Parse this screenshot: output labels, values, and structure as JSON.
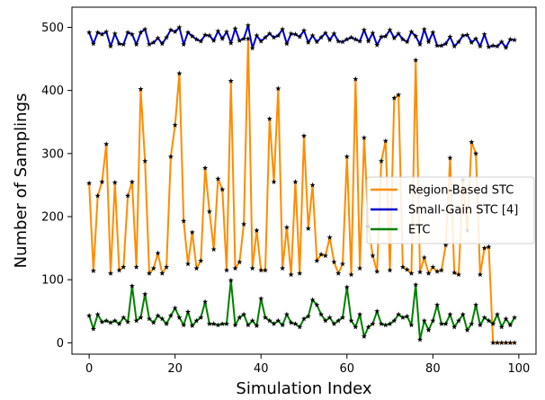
{
  "chart_data": {
    "type": "line",
    "xlabel": "Simulation Index",
    "ylabel": "Number of Samplings",
    "xlim": [
      -4,
      104
    ],
    "ylim": [
      -18,
      532
    ],
    "xticks": [
      0,
      20,
      40,
      60,
      80,
      100
    ],
    "yticks": [
      0,
      100,
      200,
      300,
      400,
      500
    ],
    "grid": false,
    "legend_placement": "center-right",
    "marker": "star",
    "series": [
      {
        "name": "Region-Based STC",
        "color": "#ff8c00",
        "x": [
          0,
          1,
          2,
          3,
          4,
          5,
          6,
          7,
          8,
          9,
          10,
          11,
          12,
          13,
          14,
          15,
          16,
          17,
          18,
          19,
          20,
          21,
          22,
          23,
          24,
          25,
          26,
          27,
          28,
          29,
          30,
          31,
          32,
          33,
          34,
          35,
          36,
          37,
          38,
          39,
          40,
          41,
          42,
          43,
          44,
          45,
          46,
          47,
          48,
          49,
          50,
          51,
          52,
          53,
          54,
          55,
          56,
          57,
          58,
          59,
          60,
          61,
          62,
          63,
          64,
          65,
          66,
          67,
          68,
          69,
          70,
          71,
          72,
          73,
          74,
          75,
          76,
          77,
          78,
          79,
          80,
          81,
          82,
          83,
          84,
          85,
          86,
          87,
          88,
          89,
          90,
          91,
          92,
          93,
          94,
          95,
          96,
          97,
          98,
          99
        ],
        "values": [
          253,
          114,
          233,
          255,
          315,
          110,
          254,
          115,
          120,
          233,
          255,
          120,
          402,
          288,
          110,
          118,
          142,
          110,
          120,
          295,
          345,
          427,
          193,
          125,
          175,
          118,
          130,
          277,
          208,
          148,
          260,
          243,
          115,
          415,
          118,
          128,
          188,
          482,
          118,
          178,
          115,
          115,
          355,
          255,
          403,
          118,
          183,
          108,
          255,
          110,
          328,
          181,
          250,
          130,
          140,
          138,
          167,
          128,
          110,
          125,
          295,
          108,
          418,
          118,
          325,
          184,
          138,
          113,
          288,
          320,
          115,
          388,
          393,
          120,
          116,
          110,
          448,
          112,
          135,
          110,
          120,
          113,
          115,
          155,
          293,
          111,
          108,
          258,
          178,
          318,
          300,
          108,
          150,
          152,
          0,
          0,
          0,
          0,
          0,
          0
        ],
        "values_note": ""
      },
      {
        "name": "Small-Gain STC [4]",
        "color": "#0000cc",
        "x": [
          0,
          1,
          2,
          3,
          4,
          5,
          6,
          7,
          8,
          9,
          10,
          11,
          12,
          13,
          14,
          15,
          16,
          17,
          18,
          19,
          20,
          21,
          22,
          23,
          24,
          25,
          26,
          27,
          28,
          29,
          30,
          31,
          32,
          33,
          34,
          35,
          36,
          37,
          38,
          39,
          40,
          41,
          42,
          43,
          44,
          45,
          46,
          47,
          48,
          49,
          50,
          51,
          52,
          53,
          54,
          55,
          56,
          57,
          58,
          59,
          60,
          61,
          62,
          63,
          64,
          65,
          66,
          67,
          68,
          69,
          70,
          71,
          72,
          73,
          74,
          75,
          76,
          77,
          78,
          79,
          80,
          81,
          82,
          83,
          84,
          85,
          86,
          87,
          88,
          89,
          90,
          91,
          92,
          93,
          94,
          95,
          96,
          97,
          98,
          99
        ],
        "values": [
          492,
          474,
          492,
          489,
          493,
          470,
          490,
          474,
          473,
          492,
          489,
          473,
          492,
          497,
          473,
          476,
          483,
          474,
          484,
          496,
          493,
          500,
          473,
          492,
          486,
          481,
          478,
          488,
          487,
          479,
          494,
          482,
          493,
          475,
          498,
          479,
          482,
          503,
          467,
          487,
          478,
          484,
          490,
          484,
          487,
          497,
          474,
          490,
          489,
          485,
          495,
          476,
          487,
          477,
          484,
          491,
          480,
          490,
          478,
          477,
          481,
          484,
          481,
          478,
          496,
          478,
          491,
          472,
          485,
          486,
          496,
          483,
          490,
          481,
          477,
          493,
          486,
          473,
          497,
          477,
          492,
          471,
          471,
          474,
          485,
          470,
          477,
          487,
          488,
          476,
          482,
          470,
          489,
          469,
          471,
          470,
          477,
          468,
          481,
          480
        ],
        "values_note": ""
      },
      {
        "name": "ETC",
        "color": "#008000",
        "x": [
          0,
          1,
          2,
          3,
          4,
          5,
          6,
          7,
          8,
          9,
          10,
          11,
          12,
          13,
          14,
          15,
          16,
          17,
          18,
          19,
          20,
          21,
          22,
          23,
          24,
          25,
          26,
          27,
          28,
          29,
          30,
          31,
          32,
          33,
          34,
          35,
          36,
          37,
          38,
          39,
          40,
          41,
          42,
          43,
          44,
          45,
          46,
          47,
          48,
          49,
          50,
          51,
          52,
          53,
          54,
          55,
          56,
          57,
          58,
          59,
          60,
          61,
          62,
          63,
          64,
          65,
          66,
          67,
          68,
          69,
          70,
          71,
          72,
          73,
          74,
          75,
          76,
          77,
          78,
          79,
          80,
          81,
          82,
          83,
          84,
          85,
          86,
          87,
          88,
          89,
          90,
          91,
          92,
          93,
          94,
          95,
          96,
          97,
          98,
          99
        ],
        "values": [
          43,
          22,
          45,
          33,
          35,
          32,
          35,
          30,
          40,
          33,
          90,
          35,
          40,
          77,
          38,
          32,
          43,
          38,
          30,
          43,
          55,
          40,
          28,
          49,
          27,
          35,
          40,
          65,
          30,
          30,
          28,
          30,
          30,
          99,
          28,
          40,
          45,
          28,
          35,
          27,
          70,
          40,
          35,
          30,
          35,
          28,
          45,
          32,
          30,
          25,
          38,
          42,
          68,
          60,
          45,
          35,
          40,
          30,
          35,
          40,
          88,
          35,
          25,
          45,
          10,
          25,
          30,
          50,
          30,
          28,
          30,
          35,
          45,
          40,
          42,
          28,
          92,
          5,
          35,
          20,
          35,
          60,
          30,
          30,
          45,
          25,
          35,
          45,
          20,
          30,
          60,
          28,
          40,
          35,
          30,
          45,
          25,
          38,
          28,
          40
        ],
        "values_note": ""
      }
    ]
  }
}
